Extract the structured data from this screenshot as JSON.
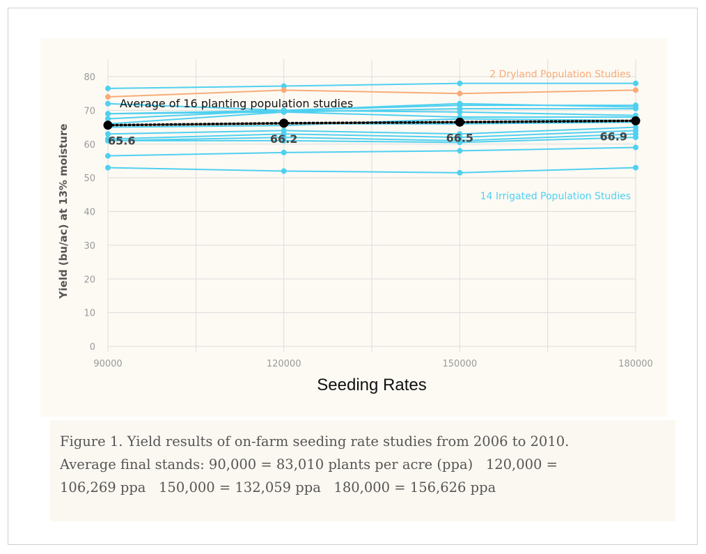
{
  "chart_data": {
    "type": "line",
    "xlabel": "Seeding Rates",
    "ylabel": "Yield (bu/ac) at 13% moisture",
    "x": [
      90000,
      120000,
      150000,
      180000
    ],
    "xticks": [
      "90000",
      "120000",
      "150000",
      "180000"
    ],
    "yticks": [
      "0",
      "10",
      "20",
      "30",
      "40",
      "50",
      "60",
      "70",
      "80"
    ],
    "ylim": [
      0,
      80
    ],
    "xlim": [
      90000,
      180000
    ],
    "grid": true,
    "annotations": {
      "dryland": "2 Dryland Population Studies",
      "irrigated": "14  Irrigated Population Studies",
      "average": "Average of 16 planting population studies"
    },
    "colors": {
      "irrigated": "#4fd0f0",
      "dryland": "#f8ac78",
      "average": "#000000"
    },
    "dryland_series": [
      [
        74,
        76,
        75,
        76
      ],
      [
        65.5,
        66,
        66.5,
        67
      ]
    ],
    "irrigated_series": [
      [
        76.5,
        77.2,
        78,
        78
      ],
      [
        72,
        70,
        71.5,
        71.5
      ],
      [
        69,
        70,
        72,
        71
      ],
      [
        69,
        69.5,
        70.5,
        70.5
      ],
      [
        67.5,
        70,
        69.5,
        68.5
      ],
      [
        66,
        69.5,
        68,
        68
      ],
      [
        65,
        65.5,
        67.5,
        67
      ],
      [
        65.5,
        66,
        66,
        66.5
      ],
      [
        63,
        64,
        63,
        65
      ],
      [
        61.5,
        63,
        62,
        64
      ],
      [
        61,
        62,
        61,
        63
      ],
      [
        61,
        61,
        60.5,
        62
      ],
      [
        56.5,
        57.5,
        58,
        59
      ],
      [
        53,
        52,
        51.5,
        53
      ]
    ],
    "average_series": {
      "values": [
        65.6,
        66.2,
        66.5,
        66.9
      ],
      "labels": [
        "65.6",
        "66.2",
        "66.5",
        "66.9"
      ]
    }
  },
  "caption": {
    "line1": "Figure 1. Yield results of on-farm seeding rate studies from 2006 to 2010.",
    "line2": "Average final stands: 90,000 = 83,010 plants per acre (ppa)   120,000 =",
    "line3": "106,269 ppa   150,000 = 132,059 ppa   180,000 = 156,626 ppa"
  }
}
